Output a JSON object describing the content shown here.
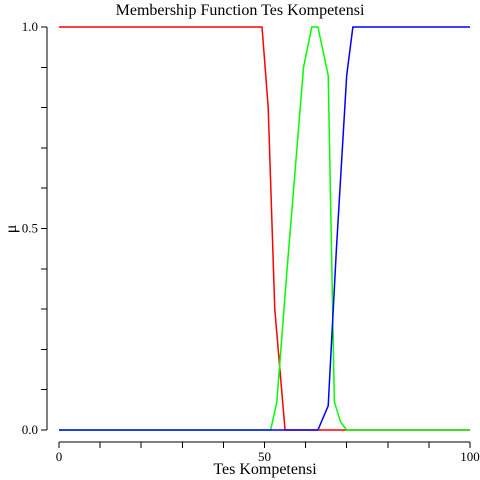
{
  "chart_data": {
    "type": "line",
    "title": "Membership Function Tes Kompetensi",
    "xlabel": "Tes Kompetensi",
    "ylabel": "μ",
    "xlim": [
      0,
      100
    ],
    "ylim": [
      0,
      1
    ],
    "x_ticks_labeled": [
      "0",
      "50",
      "100"
    ],
    "y_ticks_labeled": [
      "0.0",
      "0.5",
      "1.0"
    ],
    "x_tick_values": [
      0,
      10,
      20,
      30,
      40,
      50,
      60,
      70,
      80,
      90,
      100
    ],
    "y_tick_values": [
      0,
      0.1,
      0.2,
      0.3,
      0.4,
      0.5,
      0.6,
      0.7,
      0.8,
      0.9,
      1.0
    ],
    "grid": false,
    "legend": "none",
    "series": [
      {
        "color": "#ff0000",
        "x": [
          0,
          49.4,
          50.9,
          52.5,
          55.0,
          70.0,
          100
        ],
        "y": [
          1.0,
          1.0,
          0.8,
          0.3,
          0.0,
          0.0,
          0.0
        ]
      },
      {
        "color": "#00ff00",
        "x": [
          0,
          51.5,
          53.0,
          55.5,
          59.5,
          61.5,
          63.0,
          65.5,
          67.0,
          68.5,
          70.0,
          100
        ],
        "y": [
          0.0,
          0.0,
          0.07,
          0.4,
          0.9,
          1.0,
          1.0,
          0.88,
          0.07,
          0.02,
          0.0,
          0.0
        ]
      },
      {
        "color": "#0000ff",
        "x": [
          0,
          63.0,
          65.5,
          67.5,
          70.0,
          71.5,
          100
        ],
        "y": [
          0.0,
          0.0,
          0.06,
          0.45,
          0.88,
          1.0,
          1.0
        ]
      }
    ]
  }
}
